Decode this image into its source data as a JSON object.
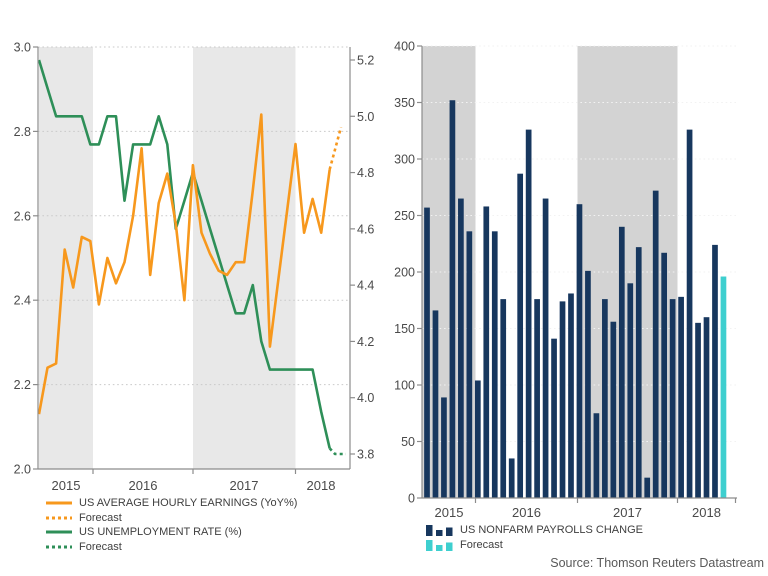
{
  "source_note": "Source: Thomson Reuters Datastream",
  "colors": {
    "earnings_line": "#F7981D",
    "unemployment_line": "#2E8F58",
    "payrolls_bar": "#17375E",
    "forecast_bar": "#3ECFCF",
    "band_left_chart": "#E8E8E8",
    "band_right_chart": "#D3D3D3",
    "axis_line": "#8C8C8C",
    "tick_text": "#4A4A4A",
    "legend_text": "#404040",
    "source_text": "#595959",
    "grid_dot_left": "#C9C9C9",
    "grid_dot_right": "#F2F2F2"
  },
  "months": [
    "2015-07",
    "2015-08",
    "2015-09",
    "2015-10",
    "2015-11",
    "2015-12",
    "2016-01",
    "2016-02",
    "2016-03",
    "2016-04",
    "2016-05",
    "2016-06",
    "2016-07",
    "2016-08",
    "2016-09",
    "2016-10",
    "2016-11",
    "2016-12",
    "2017-01",
    "2017-02",
    "2017-03",
    "2017-04",
    "2017-05",
    "2017-06",
    "2017-07",
    "2017-08",
    "2017-09",
    "2017-10",
    "2017-11",
    "2017-12",
    "2018-01",
    "2018-02",
    "2018-03",
    "2018-04",
    "2018-05",
    "2018-06"
  ],
  "chart_data": [
    {
      "type": "line",
      "title": "",
      "x_ref": "months",
      "x_tick_labels": [
        "2015",
        "2016",
        "2017",
        "2018"
      ],
      "shaded_periods": [
        "2015 (Jul-Dec partial)",
        "2017"
      ],
      "grid": "dotted horizontal",
      "legend_position": "below-left",
      "left_axis": {
        "min": 2.0,
        "max": 3.0,
        "tick_labels": [
          "3.0",
          "2.8",
          "2.6",
          "2.4",
          "2.2",
          "2.0"
        ]
      },
      "right_axis": {
        "min": 3.8,
        "max": 5.2,
        "tick_labels": [
          "5.2",
          "5.0",
          "4.8",
          "4.6",
          "4.4",
          "4.2",
          "4.0",
          "3.8"
        ]
      },
      "series": [
        {
          "name": "US AVERAGE HOURLY EARNINGS (YoY%)",
          "axis": "left",
          "forecast_points": 1,
          "forecast_value": 2.8,
          "values": [
            2.13,
            2.24,
            2.25,
            2.52,
            2.43,
            2.55,
            2.54,
            2.39,
            2.5,
            2.44,
            2.49,
            2.6,
            2.76,
            2.46,
            2.63,
            2.7,
            2.58,
            2.4,
            2.72,
            2.56,
            2.51,
            2.47,
            2.46,
            2.49,
            2.49,
            2.66,
            2.84,
            2.29,
            2.45,
            2.61,
            2.77,
            2.56,
            2.64,
            2.56,
            2.71,
            2.8
          ]
        },
        {
          "name": "US UNEMPLOYMENT RATE (%)",
          "axis": "right",
          "forecast_points": 1,
          "forecast_value": 3.8,
          "values": [
            5.2,
            5.1,
            5.0,
            5.0,
            5.0,
            5.0,
            4.9,
            4.9,
            5.0,
            5.0,
            4.7,
            4.9,
            4.9,
            4.9,
            5.0,
            4.9,
            4.6,
            4.7,
            4.8,
            4.7,
            4.6,
            4.5,
            4.4,
            4.3,
            4.3,
            4.4,
            4.2,
            4.1,
            4.1,
            4.1,
            4.1,
            4.1,
            4.1,
            3.95,
            3.82,
            3.8
          ]
        }
      ],
      "legend": [
        {
          "label": "US AVERAGE HOURLY EARNINGS (YoY%)",
          "swatch": "orange-solid-line"
        },
        {
          "label": "Forecast",
          "swatch": "orange-dotted-line"
        },
        {
          "label": "US UNEMPLOYMENT RATE (%)",
          "swatch": "green-solid-line"
        },
        {
          "label": "Forecast",
          "swatch": "green-dotted-line"
        }
      ]
    },
    {
      "type": "bar",
      "title": "",
      "x_ref": "months",
      "x_tick_labels": [
        "2015",
        "2016",
        "2017",
        "2018"
      ],
      "shaded_periods": [
        "2015 (Jul-Dec partial)",
        "2017"
      ],
      "y_axis": {
        "min": 0,
        "max": 400,
        "tick_labels": [
          "400",
          "350",
          "300",
          "250",
          "200",
          "150",
          "100",
          "50",
          "0"
        ]
      },
      "series": [
        {
          "name": "US NONFARM PAYROLLS CHANGE",
          "values": [
            257,
            166,
            89,
            352,
            265,
            236,
            104,
            258,
            236,
            176,
            35,
            287,
            326,
            176,
            265,
            141,
            174,
            181,
            260,
            201,
            75,
            176,
            156,
            240,
            190,
            222,
            18,
            272,
            217,
            176,
            178,
            326,
            155,
            160,
            224
          ]
        },
        {
          "name": "Forecast",
          "applies_to": "2018-06",
          "values": [
            196
          ]
        }
      ],
      "legend": [
        {
          "label": "US NONFARM PAYROLLS CHANGE",
          "swatch": "navy-bars"
        },
        {
          "label": "Forecast",
          "swatch": "cyan-bars"
        }
      ]
    }
  ]
}
